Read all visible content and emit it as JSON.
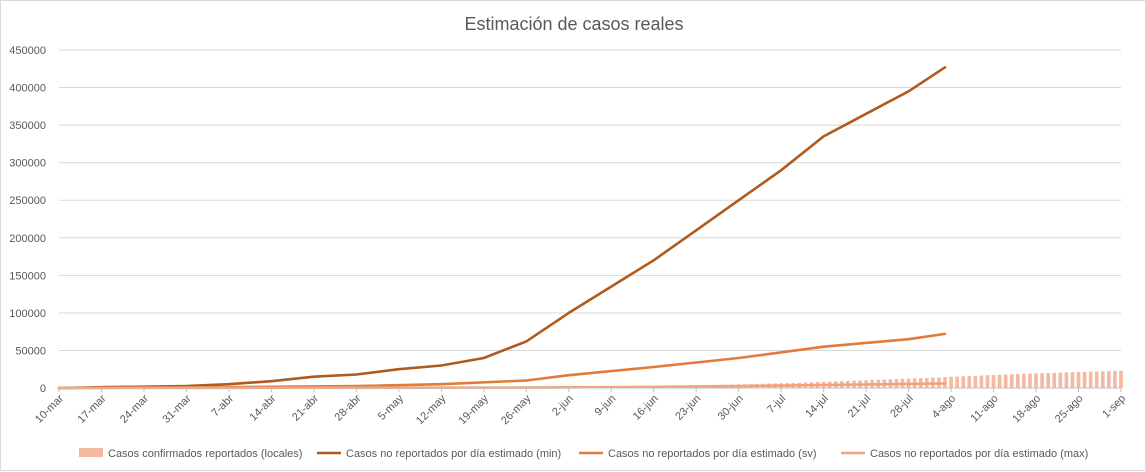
{
  "chart_data": {
    "type": "line",
    "title": "Estimación de casos reales",
    "xlabel": "",
    "ylabel": "",
    "ylim": [
      0,
      450000
    ],
    "y_ticks": [
      "0",
      "50000",
      "100000",
      "150000",
      "200000",
      "250000",
      "300000",
      "350000",
      "400000",
      "450000"
    ],
    "x_start": "2020-03-10",
    "x_end": "2020-09-01",
    "x_tick_labels": [
      "10-mar",
      "17-mar",
      "24-mar",
      "31-mar",
      "7-abr",
      "14-abr",
      "21-abr",
      "28-abr",
      "5-may",
      "12-may",
      "19-may",
      "26-may",
      "2-jun",
      "9-jun",
      "16-jun",
      "23-jun",
      "30-jun",
      "7-jul",
      "14-jul",
      "21-jul",
      "28-jul",
      "4-ago",
      "11-ago",
      "18-ago",
      "25-ago",
      "1-sep"
    ],
    "grid": "horizontal",
    "legend_position": "bottom",
    "series": [
      {
        "name": "Casos confirmados reportados (locales)",
        "kind": "bar",
        "color": "#f4b8a3",
        "points": [
          [
            "2020-03-10",
            10
          ],
          [
            "2020-04-01",
            200
          ],
          [
            "2020-05-01",
            500
          ],
          [
            "2020-06-01",
            1200
          ],
          [
            "2020-06-15",
            2500
          ],
          [
            "2020-06-30",
            4800
          ],
          [
            "2020-07-10",
            7000
          ],
          [
            "2020-07-20",
            10000
          ],
          [
            "2020-07-31",
            13500
          ],
          [
            "2020-08-10",
            17000
          ],
          [
            "2020-08-20",
            20000
          ],
          [
            "2020-09-01",
            23000
          ]
        ]
      },
      {
        "name": "Casos no reportados por día estimado (min)",
        "kind": "line",
        "color": "#b05a1c",
        "points": [
          [
            "2020-03-10",
            0
          ],
          [
            "2020-03-17",
            1000
          ],
          [
            "2020-03-31",
            2500
          ],
          [
            "2020-04-07",
            5000
          ],
          [
            "2020-04-14",
            9000
          ],
          [
            "2020-04-21",
            15000
          ],
          [
            "2020-04-28",
            18000
          ],
          [
            "2020-05-05",
            25000
          ],
          [
            "2020-05-12",
            30000
          ],
          [
            "2020-05-19",
            40000
          ],
          [
            "2020-05-26",
            62000
          ],
          [
            "2020-06-02",
            100000
          ],
          [
            "2020-06-09",
            135000
          ],
          [
            "2020-06-16",
            170000
          ],
          [
            "2020-06-23",
            210000
          ],
          [
            "2020-06-30",
            250000
          ],
          [
            "2020-07-07",
            290000
          ],
          [
            "2020-07-14",
            335000
          ],
          [
            "2020-07-21",
            365000
          ],
          [
            "2020-07-28",
            395000
          ],
          [
            "2020-08-03",
            427000
          ]
        ]
      },
      {
        "name": "Casos no reportados por día estimado (sv)",
        "kind": "line",
        "color": "#e07b3a",
        "points": [
          [
            "2020-03-10",
            0
          ],
          [
            "2020-04-07",
            1000
          ],
          [
            "2020-04-28",
            2500
          ],
          [
            "2020-05-12",
            5000
          ],
          [
            "2020-05-26",
            10000
          ],
          [
            "2020-06-02",
            17000
          ],
          [
            "2020-06-16",
            28000
          ],
          [
            "2020-06-30",
            40000
          ],
          [
            "2020-07-14",
            55000
          ],
          [
            "2020-07-28",
            65000
          ],
          [
            "2020-08-03",
            72000
          ]
        ]
      },
      {
        "name": "Casos no reportados por día estimado (max)",
        "kind": "line",
        "color": "#f0a37a",
        "points": [
          [
            "2020-03-10",
            0
          ],
          [
            "2020-05-26",
            500
          ],
          [
            "2020-06-16",
            1500
          ],
          [
            "2020-06-30",
            2500
          ],
          [
            "2020-07-14",
            4000
          ],
          [
            "2020-07-28",
            5500
          ],
          [
            "2020-08-03",
            6000
          ]
        ]
      }
    ]
  }
}
